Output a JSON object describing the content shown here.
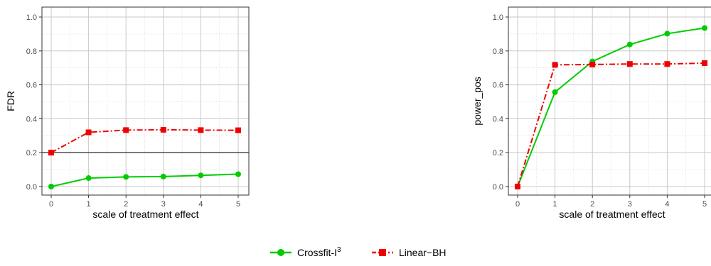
{
  "chart_data": [
    {
      "type": "line",
      "xlabel": "scale of treatment effect",
      "ylabel": "FDR",
      "x": [
        0,
        1,
        2,
        3,
        4,
        5
      ],
      "xlim": [
        0,
        5
      ],
      "ylim": [
        0,
        1
      ],
      "x_ticks": [
        "0",
        "1",
        "2",
        "3",
        "4",
        "5"
      ],
      "y_ticks": [
        "0.0",
        "0.2",
        "0.4",
        "0.6",
        "0.8",
        "1.0"
      ],
      "reference_line": 0.2,
      "grid": true,
      "series": [
        {
          "key": "crossfit",
          "values": [
            0.0,
            0.05,
            0.057,
            0.059,
            0.066,
            0.073
          ]
        },
        {
          "key": "linearbh",
          "values": [
            0.2,
            0.32,
            0.333,
            0.335,
            0.333,
            0.332
          ]
        }
      ]
    },
    {
      "type": "line",
      "xlabel": "scale of treatment effect",
      "ylabel": "power_pos",
      "x": [
        0,
        1,
        2,
        3,
        4,
        5
      ],
      "xlim": [
        0,
        5
      ],
      "ylim": [
        0,
        1
      ],
      "x_ticks": [
        "0",
        "1",
        "2",
        "3",
        "4",
        "5"
      ],
      "y_ticks": [
        "0.0",
        "0.2",
        "0.4",
        "0.6",
        "0.8",
        "1.0"
      ],
      "grid": true,
      "series": [
        {
          "key": "crossfit",
          "values": [
            0.0,
            0.557,
            0.738,
            0.838,
            0.902,
            0.935
          ]
        },
        {
          "key": "linearbh",
          "values": [
            0.0,
            0.718,
            0.72,
            0.723,
            0.723,
            0.728
          ]
        }
      ]
    }
  ],
  "legend": {
    "position": "bottom",
    "items": [
      {
        "key": "crossfit",
        "label": "Crossfit-I",
        "superscript": "3",
        "color": "#00cc00",
        "marker": "circle",
        "line": "solid"
      },
      {
        "key": "linearbh",
        "label": "Linear−BH",
        "color": "#ee0000",
        "marker": "square",
        "line": "dash-dot"
      }
    ]
  }
}
